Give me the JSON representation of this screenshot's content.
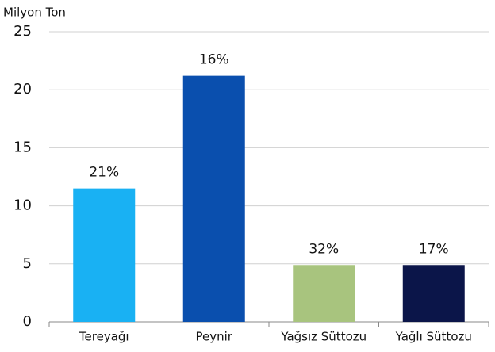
{
  "chart_data": {
    "type": "bar",
    "y_axis_label": "Milyon Ton",
    "categories": [
      "Tereyağı",
      "Peynir",
      "Yağsız Süttozu",
      "Yağlı Süttozu"
    ],
    "values": [
      11.5,
      21.2,
      4.9,
      4.9
    ],
    "annotations": [
      "21%",
      "16%",
      "32%",
      "17%"
    ],
    "colors": [
      "#19b1f3",
      "#0a4fae",
      "#a8c47e",
      "#0b1549"
    ],
    "ylim": [
      0,
      25
    ],
    "yticks": [
      0,
      5,
      10,
      15,
      20,
      25
    ],
    "grid": true
  }
}
